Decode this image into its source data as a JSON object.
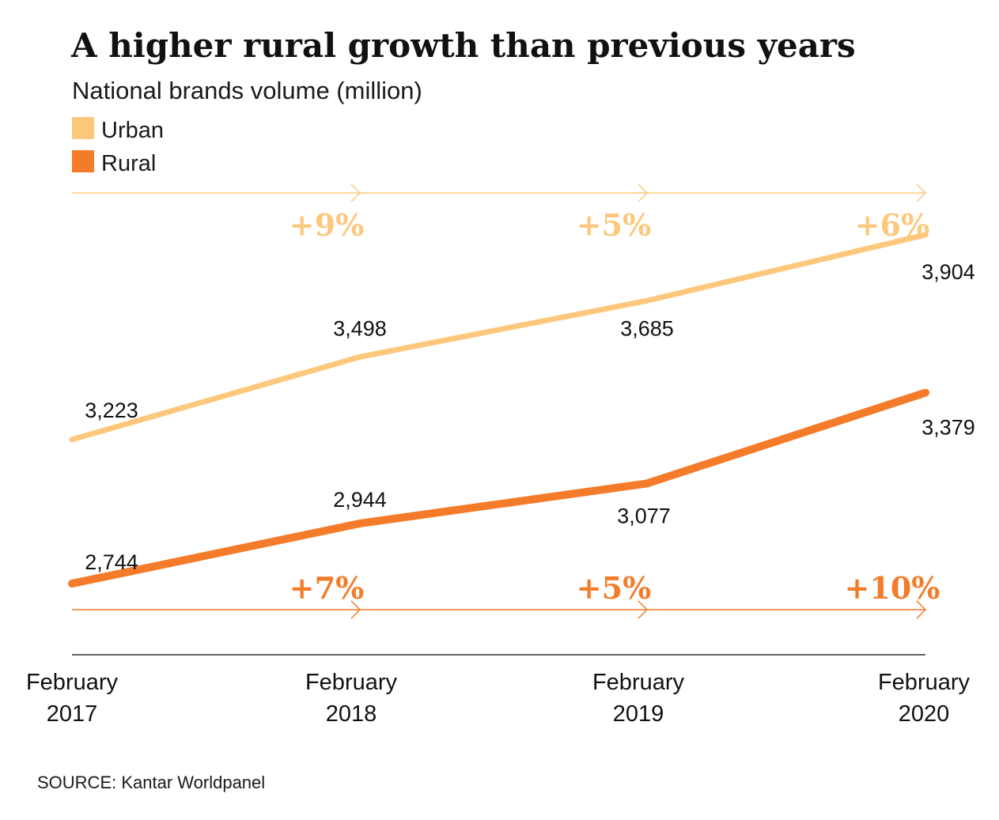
{
  "chart_data": {
    "type": "line",
    "title": "A higher rural growth than previous years",
    "subtitle": "National brands volume (million)",
    "categories": [
      [
        "February",
        "2017"
      ],
      [
        "February",
        "2018"
      ],
      [
        "February",
        "2019"
      ],
      [
        "February",
        "2020"
      ]
    ],
    "ylim": [
      2744,
      3904
    ],
    "legend_position": "top-left",
    "grid": false,
    "series": [
      {
        "name": "Urban",
        "color": "#FDC77C",
        "values": [
          3223,
          3498,
          3685,
          3904
        ],
        "labels": [
          "3,223",
          "3,498",
          "3,685",
          "3,904"
        ],
        "growth_labels": [
          "+9%",
          "+5%",
          "+6%"
        ]
      },
      {
        "name": "Rural",
        "color": "#F47B2A",
        "values": [
          2744,
          2944,
          3077,
          3379
        ],
        "labels": [
          "2,744",
          "2,944",
          "3,077",
          "3,379"
        ],
        "growth_labels": [
          "+7%",
          "+5%",
          "+10%"
        ]
      }
    ],
    "source": "SOURCE: Kantar Worldpanel"
  }
}
